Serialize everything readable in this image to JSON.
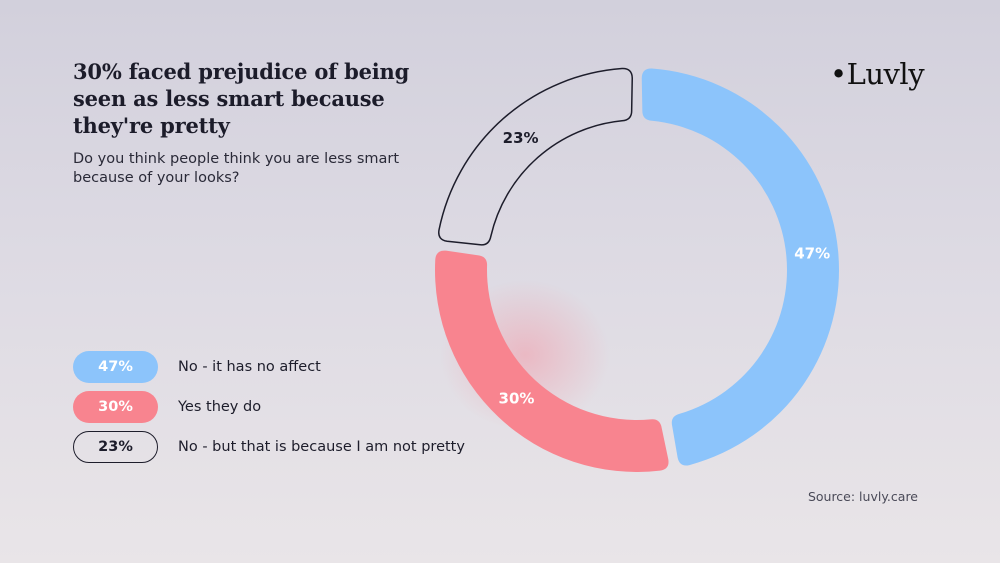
{
  "header": {
    "title": "30% faced prejudice of being seen as less smart because they're pretty",
    "subtitle": "Do you think people think you are less smart because of your looks?"
  },
  "brand": {
    "logo_text": "•Luvly"
  },
  "legend": [
    {
      "pct": "47%",
      "label": "No - it has no affect",
      "style": "blue"
    },
    {
      "pct": "30%",
      "label": "Yes they do",
      "style": "pink"
    },
    {
      "pct": "23%",
      "label": "No - but that is because I am not pretty",
      "style": "outline"
    }
  ],
  "source": "Source: luvly.care",
  "colors": {
    "blue": "#8cc4fb",
    "pink": "#f8848f",
    "outline": "#1d1d2b",
    "text_light": "#ffffff",
    "text_dark": "#1d1d2b"
  },
  "chart_data": {
    "type": "pie",
    "title": "30% faced prejudice of being seen as less smart because they're pretty",
    "subtitle": "Do you think people think you are less smart because of your looks?",
    "categories": [
      "No - it has no affect",
      "Yes they do",
      "No - but that is because I am not pretty"
    ],
    "values": [
      47,
      30,
      23
    ],
    "labels": [
      "47%",
      "30%",
      "23%"
    ],
    "style": "donut"
  }
}
